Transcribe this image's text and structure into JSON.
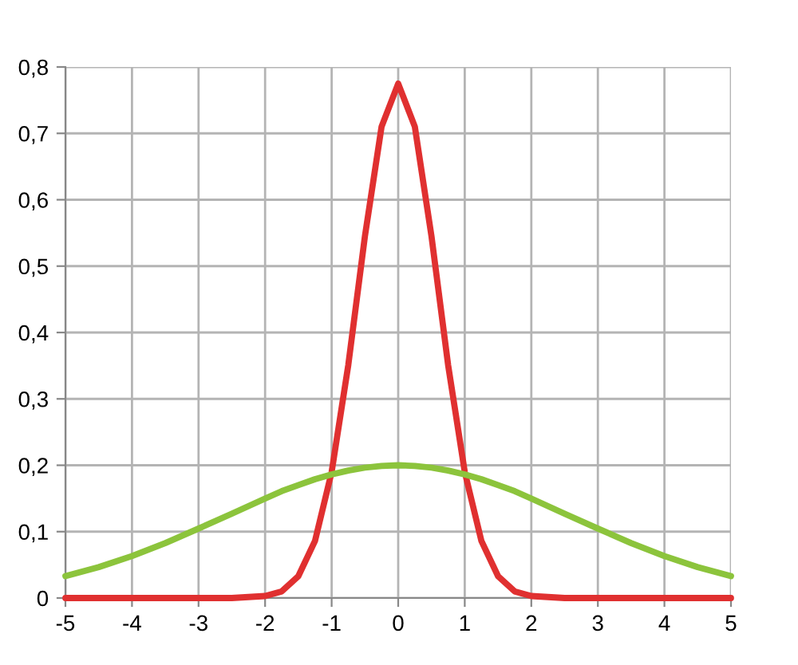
{
  "chart_data": {
    "type": "line",
    "x": [
      -5,
      -4.5,
      -4,
      -3.5,
      -3,
      -2.5,
      -2,
      -1.75,
      -1.5,
      -1.25,
      -1,
      -0.75,
      -0.5,
      -0.25,
      0,
      0.25,
      0.5,
      0.75,
      1,
      1.25,
      1.5,
      1.75,
      2,
      2.5,
      3,
      3.5,
      4,
      4.5,
      5
    ],
    "series": [
      {
        "color": "#e03030",
        "values": [
          0.0,
          0.0,
          0.0,
          0.0,
          0.0,
          0.0,
          0.003,
          0.01,
          0.033,
          0.086,
          0.19,
          0.351,
          0.545,
          0.71,
          0.775,
          0.71,
          0.545,
          0.351,
          0.19,
          0.086,
          0.033,
          0.01,
          0.003,
          0.0,
          0.0,
          0.0,
          0.0,
          0.0,
          0.0
        ]
      },
      {
        "color": "#8cc43c",
        "values": [
          0.033,
          0.0465,
          0.0632,
          0.0828,
          0.1046,
          0.127,
          0.1499,
          0.161,
          0.1702,
          0.179,
          0.1861,
          0.192,
          0.1964,
          0.199,
          0.2,
          0.199,
          0.1964,
          0.192,
          0.1861,
          0.179,
          0.1702,
          0.161,
          0.1499,
          0.127,
          0.1046,
          0.0828,
          0.0632,
          0.0465,
          0.033
        ]
      }
    ],
    "xlim": [
      -5,
      5
    ],
    "xticks": [
      -5,
      -4,
      -3,
      -2,
      -1,
      0,
      1,
      2,
      3,
      4,
      5
    ],
    "ylim": [
      0,
      0.8
    ],
    "yticks": [
      {
        "value": 0,
        "label": "0"
      },
      {
        "value": 0.1,
        "label": "0,1"
      },
      {
        "value": 0.2,
        "label": "0,2"
      },
      {
        "value": 0.3,
        "label": "0,3"
      },
      {
        "value": 0.4,
        "label": "0,4"
      },
      {
        "value": 0.5,
        "label": "0,5"
      },
      {
        "value": 0.6,
        "label": "0,6"
      },
      {
        "value": 0.7,
        "label": "0,7"
      },
      {
        "value": 0.8,
        "label": "0,8"
      }
    ],
    "grid": true,
    "line_style": "solid",
    "marker": "none"
  }
}
